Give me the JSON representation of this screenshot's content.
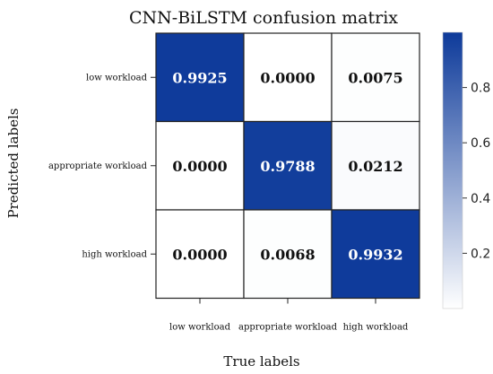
{
  "chart_data": {
    "type": "heatmap",
    "title": "CNN-BiLSTM confusion matrix",
    "xlabel": "True labels",
    "ylabel": "Predicted labels",
    "x_categories": [
      "low workload",
      "appropriate workload",
      "high workload"
    ],
    "y_categories": [
      "low workload",
      "appropriate workload",
      "high workload"
    ],
    "values": [
      [
        "0.9925",
        "0.0000",
        "0.0075"
      ],
      [
        "0.0000",
        "0.9788",
        "0.0212"
      ],
      [
        "0.0000",
        "0.0068",
        "0.9932"
      ]
    ],
    "colorbar": {
      "range": [
        0,
        1
      ],
      "ticks": [
        "0.2",
        "0.4",
        "0.6",
        "0.8"
      ],
      "color_low": "#ffffff",
      "color_high": "#0d3a9a"
    },
    "cell_text_color_light": "#ffffff",
    "cell_text_color_dark": "#111111",
    "grid_color": "#222222"
  }
}
